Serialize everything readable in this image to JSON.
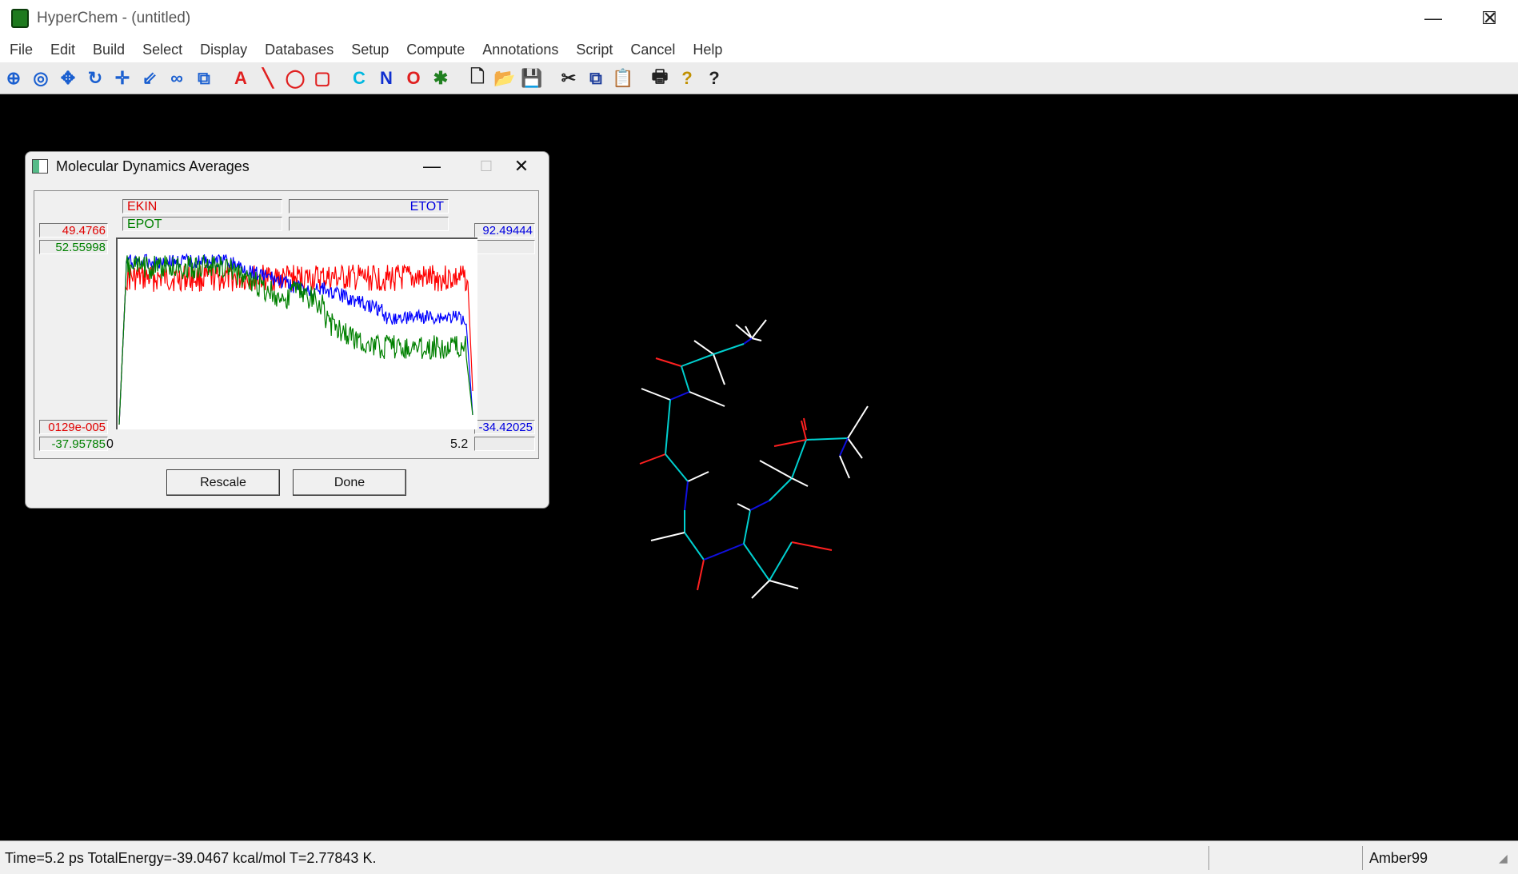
{
  "window": {
    "title": "HyperChem - (untitled)"
  },
  "menu": [
    "File",
    "Edit",
    "Build",
    "Select",
    "Display",
    "Databases",
    "Setup",
    "Compute",
    "Annotations",
    "Script",
    "Cancel",
    "Help"
  ],
  "toolbar": {
    "tools": [
      {
        "name": "draw-tool-icon",
        "glyph": "⊕",
        "color": "#1a5fd0"
      },
      {
        "name": "select-tool-icon",
        "glyph": "◎",
        "color": "#1a5fd0"
      },
      {
        "name": "rotate-xy-icon",
        "glyph": "✥",
        "color": "#1a5fd0"
      },
      {
        "name": "rotate-z-icon",
        "glyph": "↻",
        "color": "#1a5fd0"
      },
      {
        "name": "translate-xy-icon",
        "glyph": "✛",
        "color": "#1a5fd0"
      },
      {
        "name": "translate-z-icon",
        "glyph": "⇙",
        "color": "#1a5fd0"
      },
      {
        "name": "zoom-icon",
        "glyph": "∞",
        "color": "#1a5fd0"
      },
      {
        "name": "clip-icon",
        "glyph": "⧉",
        "color": "#1a5fd0"
      }
    ],
    "annotations": [
      {
        "name": "text-annotation-icon",
        "glyph": "A",
        "color": "#e02020"
      },
      {
        "name": "line-annotation-icon",
        "glyph": "╲",
        "color": "#e02020"
      },
      {
        "name": "ellipse-annotation-icon",
        "glyph": "◯",
        "color": "#e02020"
      },
      {
        "name": "rectangle-annotation-icon",
        "glyph": "▢",
        "color": "#e02020"
      }
    ],
    "elements": [
      {
        "name": "carbon-element-icon",
        "glyph": "C",
        "color": "#00b8e0"
      },
      {
        "name": "nitrogen-element-icon",
        "glyph": "N",
        "color": "#1030d0"
      },
      {
        "name": "oxygen-element-icon",
        "glyph": "O",
        "color": "#e02020"
      },
      {
        "name": "periodic-table-icon",
        "glyph": "✱",
        "color": "#208020"
      }
    ],
    "files": [
      {
        "name": "new-file-icon",
        "glyph": "🗋",
        "color": "#222"
      },
      {
        "name": "open-file-icon",
        "glyph": "📂",
        "color": "#b08000"
      },
      {
        "name": "save-file-icon",
        "glyph": "💾",
        "color": "#222"
      }
    ],
    "edit": [
      {
        "name": "cut-icon",
        "glyph": "✂",
        "color": "#222"
      },
      {
        "name": "copy-icon",
        "glyph": "⧉",
        "color": "#1a3a9a"
      },
      {
        "name": "paste-icon",
        "glyph": "📋",
        "color": "#444"
      }
    ],
    "misc": [
      {
        "name": "print-icon",
        "glyph": "🖶",
        "color": "#222"
      },
      {
        "name": "help-icon",
        "glyph": "?",
        "color": "#c09000"
      },
      {
        "name": "context-help-icon",
        "glyph": "?",
        "color": "#222"
      }
    ]
  },
  "dialog": {
    "title": "Molecular Dynamics Averages",
    "legend": {
      "ekin": "EKIN",
      "etot": "ETOT",
      "epot": "EPOT"
    },
    "left_axis": {
      "ekin_max": "49.4766",
      "epot_max": "52.55998",
      "ekin_min": "0129e-005",
      "epot_min": "-37.95785"
    },
    "right_axis": {
      "etot_max": "92.49444",
      "etot_min": "-34.42025"
    },
    "x_axis": {
      "min": "0",
      "max": "5.2"
    },
    "buttons": {
      "rescale": "Rescale",
      "done": "Done"
    },
    "colors": {
      "ekin": "#ff0000",
      "etot": "#0000ff",
      "epot": "#008000"
    }
  },
  "chart_data": {
    "type": "line",
    "x_range": [
      0,
      5.2
    ],
    "series": [
      {
        "name": "EKIN",
        "color": "#ff0000",
        "ylim": [
          0.000129,
          49.4766
        ],
        "level": "fluctuating 30–49 after rise"
      },
      {
        "name": "ETOT",
        "color": "#0000ff",
        "ylim": [
          -34.42025,
          92.49444
        ]
      },
      {
        "name": "EPOT",
        "color": "#008000",
        "ylim": [
          -37.95785,
          52.55998
        ]
      }
    ]
  },
  "status": {
    "message": "Time=5.2 ps  TotalEnergy=-39.0467 kcal/mol   T=2.77843 K.",
    "forcefield": "Amber99"
  }
}
